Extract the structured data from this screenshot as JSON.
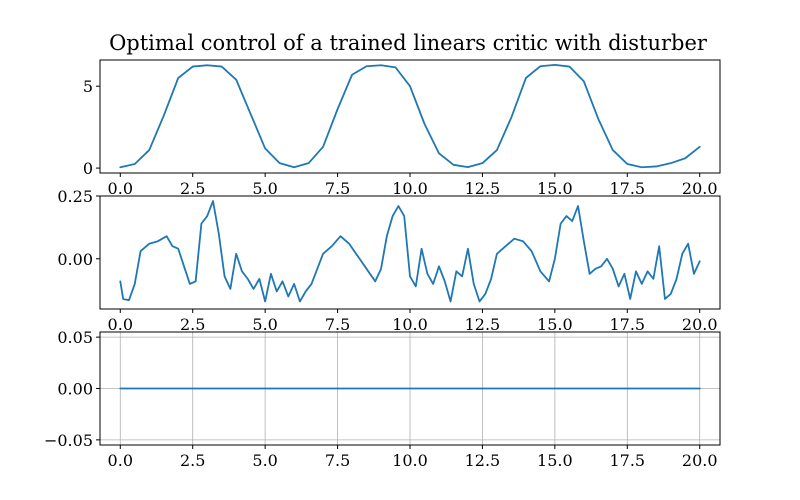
{
  "title": "Optimal control of a trained linears critic with disturber",
  "chart_data": [
    {
      "type": "line",
      "xlim": [
        -0.7,
        20.7
      ],
      "ylim": [
        -0.3,
        6.6
      ],
      "xticks": [
        "0.0",
        "2.5",
        "5.0",
        "7.5",
        "10.0",
        "12.5",
        "15.0",
        "17.5",
        "20.0"
      ],
      "yticks": [
        "0",
        "5"
      ],
      "grid": false,
      "series": [
        {
          "x": [
            0,
            0.5,
            1.0,
            1.5,
            2.0,
            2.5,
            3.0,
            3.5,
            4.0,
            4.5,
            5.0,
            5.5,
            6.0,
            6.5,
            7.0,
            7.5,
            8.0,
            8.5,
            9.0,
            9.5,
            10.0,
            10.5,
            11.0,
            11.5,
            12.0,
            12.5,
            13.0,
            13.5,
            14.0,
            14.5,
            15.0,
            15.5,
            16.0,
            16.5,
            17.0,
            17.5,
            18.0,
            18.5,
            19.0,
            19.5,
            20.0
          ],
          "y": [
            0.05,
            0.25,
            1.1,
            3.2,
            5.5,
            6.2,
            6.28,
            6.2,
            5.4,
            3.3,
            1.2,
            0.3,
            0.05,
            0.3,
            1.3,
            3.6,
            5.7,
            6.22,
            6.28,
            6.15,
            5.0,
            2.7,
            0.9,
            0.2,
            0.06,
            0.3,
            1.1,
            3.1,
            5.5,
            6.22,
            6.3,
            6.2,
            5.3,
            3.0,
            1.1,
            0.25,
            0.05,
            0.1,
            0.3,
            0.6,
            1.3
          ]
        }
      ]
    },
    {
      "type": "line",
      "xlim": [
        -0.7,
        20.7
      ],
      "ylim": [
        -0.2,
        0.25
      ],
      "xticks": [
        "0.0",
        "2.5",
        "5.0",
        "7.5",
        "10.0",
        "12.5",
        "15.0",
        "17.5",
        "20.0"
      ],
      "yticks": [
        "0.25",
        "0.00"
      ],
      "grid": false,
      "series": [
        {
          "x": [
            0,
            0.1,
            0.3,
            0.5,
            0.7,
            1.0,
            1.3,
            1.6,
            1.8,
            2.0,
            2.2,
            2.4,
            2.6,
            2.8,
            3.0,
            3.2,
            3.4,
            3.6,
            3.8,
            4.0,
            4.2,
            4.4,
            4.6,
            4.8,
            5.0,
            5.2,
            5.4,
            5.6,
            5.8,
            6.0,
            6.2,
            6.4,
            6.6,
            6.8,
            7.0,
            7.3,
            7.6,
            7.9,
            8.2,
            8.5,
            8.8,
            9.0,
            9.2,
            9.4,
            9.6,
            9.8,
            10.0,
            10.2,
            10.4,
            10.6,
            10.8,
            11.0,
            11.2,
            11.4,
            11.6,
            11.8,
            12.0,
            12.2,
            12.4,
            12.6,
            12.8,
            13.0,
            13.3,
            13.6,
            13.9,
            14.2,
            14.5,
            14.8,
            15.0,
            15.2,
            15.4,
            15.6,
            15.8,
            16.0,
            16.2,
            16.4,
            16.6,
            16.8,
            17.0,
            17.2,
            17.4,
            17.6,
            17.8,
            18.0,
            18.2,
            18.4,
            18.6,
            18.8,
            19.0,
            19.2,
            19.4,
            19.6,
            19.8,
            20.0
          ],
          "y": [
            -0.09,
            -0.16,
            -0.165,
            -0.1,
            0.03,
            0.06,
            0.07,
            0.09,
            0.05,
            0.04,
            -0.03,
            -0.1,
            -0.09,
            0.14,
            0.17,
            0.23,
            0.1,
            -0.07,
            -0.12,
            0.02,
            -0.05,
            -0.08,
            -0.12,
            -0.08,
            -0.17,
            -0.06,
            -0.13,
            -0.09,
            -0.15,
            -0.1,
            -0.17,
            -0.13,
            -0.1,
            -0.04,
            0.02,
            0.05,
            0.09,
            0.06,
            0.01,
            -0.04,
            -0.09,
            -0.04,
            0.09,
            0.17,
            0.21,
            0.17,
            -0.07,
            -0.11,
            0.04,
            -0.06,
            -0.1,
            -0.03,
            -0.09,
            -0.17,
            -0.05,
            -0.07,
            0.04,
            -0.1,
            -0.17,
            -0.14,
            -0.08,
            0.02,
            0.05,
            0.08,
            0.07,
            0.03,
            -0.05,
            -0.09,
            0.0,
            0.14,
            0.17,
            0.15,
            0.21,
            0.07,
            -0.06,
            -0.04,
            -0.03,
            0.0,
            -0.04,
            -0.11,
            -0.06,
            -0.16,
            -0.05,
            -0.1,
            -0.05,
            -0.08,
            0.05,
            -0.16,
            -0.14,
            -0.08,
            0.02,
            0.06,
            -0.06,
            -0.01
          ]
        }
      ]
    },
    {
      "type": "line",
      "xlim": [
        -0.7,
        20.7
      ],
      "ylim": [
        -0.055,
        0.055
      ],
      "xticks": [
        "0.0",
        "2.5",
        "5.0",
        "7.5",
        "10.0",
        "12.5",
        "15.0",
        "17.5",
        "20.0"
      ],
      "yticks": [
        "0.05",
        "0.00",
        "−0.05"
      ],
      "grid": true,
      "series": [
        {
          "x": [
            0,
            20
          ],
          "y": [
            0,
            0
          ]
        }
      ]
    }
  ]
}
